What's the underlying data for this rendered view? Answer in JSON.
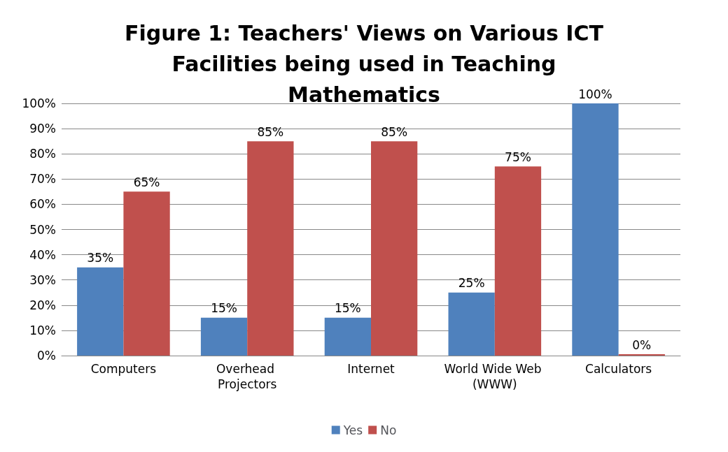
{
  "chart_data": {
    "type": "bar",
    "title": "Figure 1: Teachers' Views on Various ICT Facilities being used in Teaching Mathematics",
    "categories": [
      "Computers",
      "Overhead Projectors",
      "Internet",
      "World Wide Web (WWW)",
      "Calculators"
    ],
    "series": [
      {
        "name": "Yes",
        "color": "#4f81bd",
        "values": [
          35,
          15,
          15,
          25,
          100
        ],
        "value_labels": [
          "35%",
          "15%",
          "15%",
          "25%",
          "100%"
        ]
      },
      {
        "name": "No",
        "color": "#c0504d",
        "values": [
          65,
          85,
          85,
          75,
          0
        ],
        "value_labels": [
          "65%",
          "85%",
          "85%",
          "75%",
          "0%"
        ]
      }
    ],
    "ylim": [
      0,
      100
    ],
    "yticks": [
      {
        "value": 0,
        "label": "0%"
      },
      {
        "value": 10,
        "label": "10%"
      },
      {
        "value": 20,
        "label": "20%"
      },
      {
        "value": 30,
        "label": "30%"
      },
      {
        "value": 40,
        "label": "40%"
      },
      {
        "value": 50,
        "label": "50%"
      },
      {
        "value": 60,
        "label": "60%"
      },
      {
        "value": 70,
        "label": "70%"
      },
      {
        "value": 80,
        "label": "80%"
      },
      {
        "value": 90,
        "label": "90%"
      },
      {
        "value": 100,
        "label": "100%"
      }
    ],
    "grid": true,
    "legend": "bottom"
  }
}
